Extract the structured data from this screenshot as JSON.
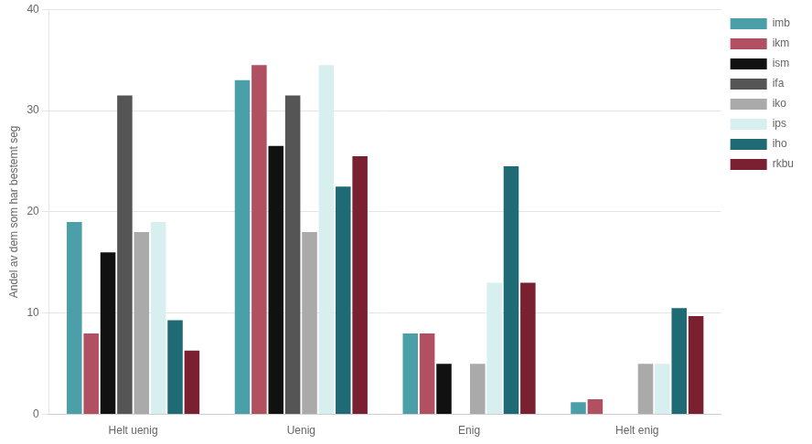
{
  "chart_data": {
    "type": "bar",
    "categories": [
      "Helt uenig",
      "Uenig",
      "Enig",
      "Helt enig"
    ],
    "series": [
      {
        "name": "imb",
        "color": "#4a9fa8",
        "values": [
          19.0,
          33.0,
          8.0,
          1.2
        ]
      },
      {
        "name": "ikm",
        "color": "#b05060",
        "values": [
          8.0,
          34.5,
          8.0,
          1.5
        ]
      },
      {
        "name": "ism",
        "color": "#111111",
        "values": [
          16.0,
          26.5,
          5.0,
          0.0
        ]
      },
      {
        "name": "ifa",
        "color": "#555555",
        "values": [
          31.5,
          31.5,
          0.0,
          0.0
        ]
      },
      {
        "name": "iko",
        "color": "#aaaaaa",
        "values": [
          18.0,
          18.0,
          5.0,
          5.0
        ]
      },
      {
        "name": "ips",
        "color": "#d8eff0",
        "values": [
          19.0,
          34.5,
          13.0,
          5.0
        ]
      },
      {
        "name": "iho",
        "color": "#1e6b75",
        "values": [
          9.3,
          22.5,
          24.5,
          10.5
        ]
      },
      {
        "name": "rkbu",
        "color": "#7a2030",
        "values": [
          6.3,
          25.5,
          13.0,
          9.7
        ]
      }
    ],
    "ylabel": "Andel av dem som har bestemt seg",
    "ylim": [
      0,
      40
    ],
    "yticks": [
      0,
      10,
      20,
      30,
      40
    ],
    "grid": true,
    "legend": "upper right"
  }
}
